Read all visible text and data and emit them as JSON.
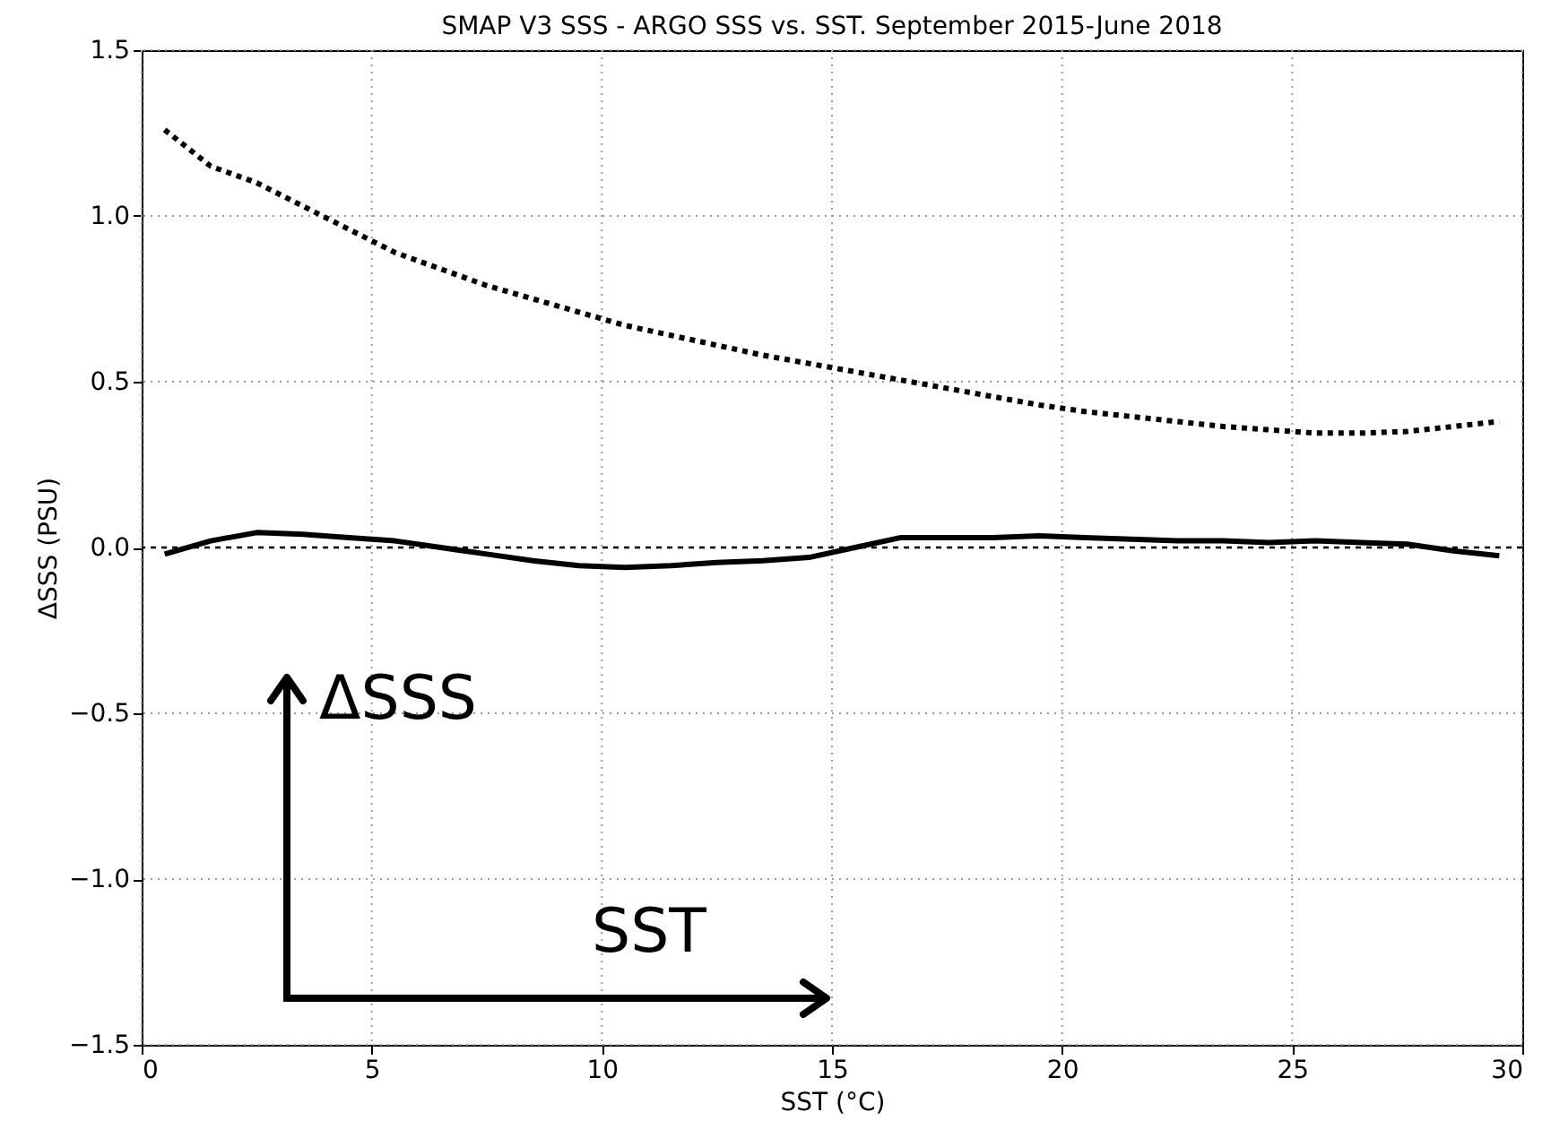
{
  "chart_data": {
    "type": "line",
    "title": "SMAP V3 SSS - ARGO SSS vs. SST.  September 2015-June 2018",
    "xlabel": "SST (°C)",
    "ylabel": "ΔSSS (PSU)",
    "x": [
      0.5,
      1.5,
      2.5,
      3.5,
      4.5,
      5.5,
      6.5,
      7.5,
      8.5,
      9.5,
      10.5,
      11.5,
      12.5,
      13.5,
      14.5,
      15.5,
      16.5,
      17.5,
      18.5,
      19.5,
      20.5,
      21.5,
      22.5,
      23.5,
      24.5,
      25.5,
      26.5,
      27.5,
      28.5,
      29.5
    ],
    "series": [
      {
        "color": "#000000",
        "line_style": "dotted",
        "values": [
          1.26,
          1.15,
          1.1,
          1.03,
          0.96,
          0.89,
          0.84,
          0.79,
          0.75,
          0.71,
          0.67,
          0.64,
          0.61,
          0.58,
          0.555,
          0.53,
          0.505,
          0.48,
          0.455,
          0.43,
          0.41,
          0.395,
          0.38,
          0.365,
          0.355,
          0.345,
          0.345,
          0.35,
          0.365,
          0.38
        ]
      },
      {
        "color": "#000000",
        "line_style": "solid",
        "values": [
          -0.02,
          0.02,
          0.045,
          0.04,
          0.03,
          0.02,
          0.0,
          -0.02,
          -0.04,
          -0.055,
          -0.06,
          -0.055,
          -0.045,
          -0.04,
          -0.03,
          0.0,
          0.03,
          0.03,
          0.03,
          0.035,
          0.03,
          0.025,
          0.02,
          0.02,
          0.015,
          0.02,
          0.015,
          0.01,
          -0.01,
          -0.025
        ]
      }
    ],
    "xlim": [
      0,
      30
    ],
    "xticks": [
      0,
      5,
      10,
      15,
      20,
      25,
      30
    ],
    "ylim": [
      -1.5,
      1.5
    ],
    "yticks": [
      {
        "value": -1.5,
        "label": "−1.5"
      },
      {
        "value": -1.0,
        "label": "−1.0"
      },
      {
        "value": -0.5,
        "label": "−0.5"
      },
      {
        "value": 0,
        "label": "0.0"
      },
      {
        "value": 0.5,
        "label": "0.5"
      },
      {
        "value": 1.0,
        "label": "1.0"
      },
      {
        "value": 1.5,
        "label": "1.5"
      }
    ],
    "ref_lines": [
      {
        "axis": "y",
        "value": 0,
        "line_style": "dotted",
        "color": "#000000"
      }
    ],
    "annotations": [
      "ΔSSS",
      "SST"
    ],
    "grid": true
  }
}
